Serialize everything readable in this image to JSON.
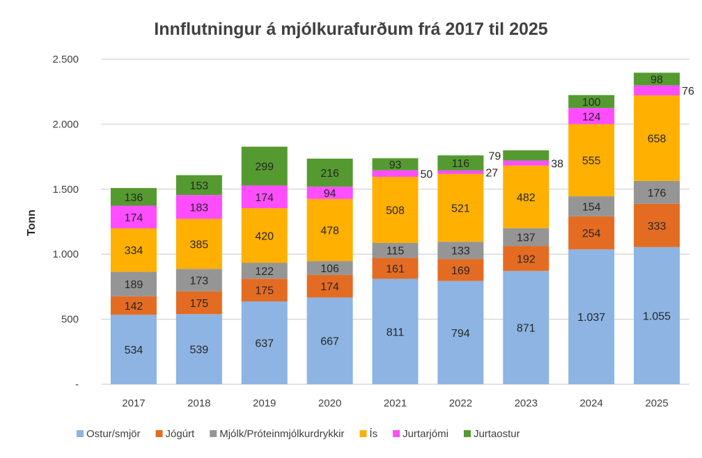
{
  "chart_data": {
    "type": "bar",
    "stacked": true,
    "title": "Innflutningur á mjólkurafurðum frá 2017 til 2025",
    "xlabel": "",
    "ylabel": "Tonn",
    "ylim": [
      0,
      2500
    ],
    "yticks": [
      0,
      500,
      1000,
      1500,
      2000,
      2500
    ],
    "ytick_labels": [
      "-",
      "500",
      "1.000",
      "1.500",
      "2.000",
      "2.500"
    ],
    "grid": true,
    "legend": "bottom",
    "categories": [
      "2017",
      "2018",
      "2019",
      "2020",
      "2021",
      "2022",
      "2023",
      "2024",
      "2025"
    ],
    "series": [
      {
        "name": "Ostur/smjör",
        "color": "#8DB4E2",
        "values": [
          534,
          539,
          637,
          667,
          811,
          794,
          871,
          1037,
          1055
        ]
      },
      {
        "name": "Jógúrt",
        "color": "#E46C22",
        "values": [
          142,
          175,
          175,
          174,
          161,
          169,
          192,
          254,
          333
        ]
      },
      {
        "name": "Mjólk/Próteinmjólkurdrykkir",
        "color": "#959595",
        "values": [
          189,
          173,
          122,
          106,
          115,
          133,
          137,
          154,
          176
        ]
      },
      {
        "name": "Ís",
        "color": "#FFB000",
        "values": [
          334,
          385,
          420,
          478,
          508,
          521,
          482,
          555,
          658
        ]
      },
      {
        "name": "Jurtarjómi",
        "color": "#FF4DFF",
        "values": [
          174,
          183,
          174,
          94,
          50,
          27,
          38,
          124,
          76
        ]
      },
      {
        "name": "Jurtaostur",
        "color": "#559A31",
        "values": [
          136,
          153,
          299,
          216,
          93,
          116,
          79,
          100,
          98
        ]
      }
    ]
  }
}
